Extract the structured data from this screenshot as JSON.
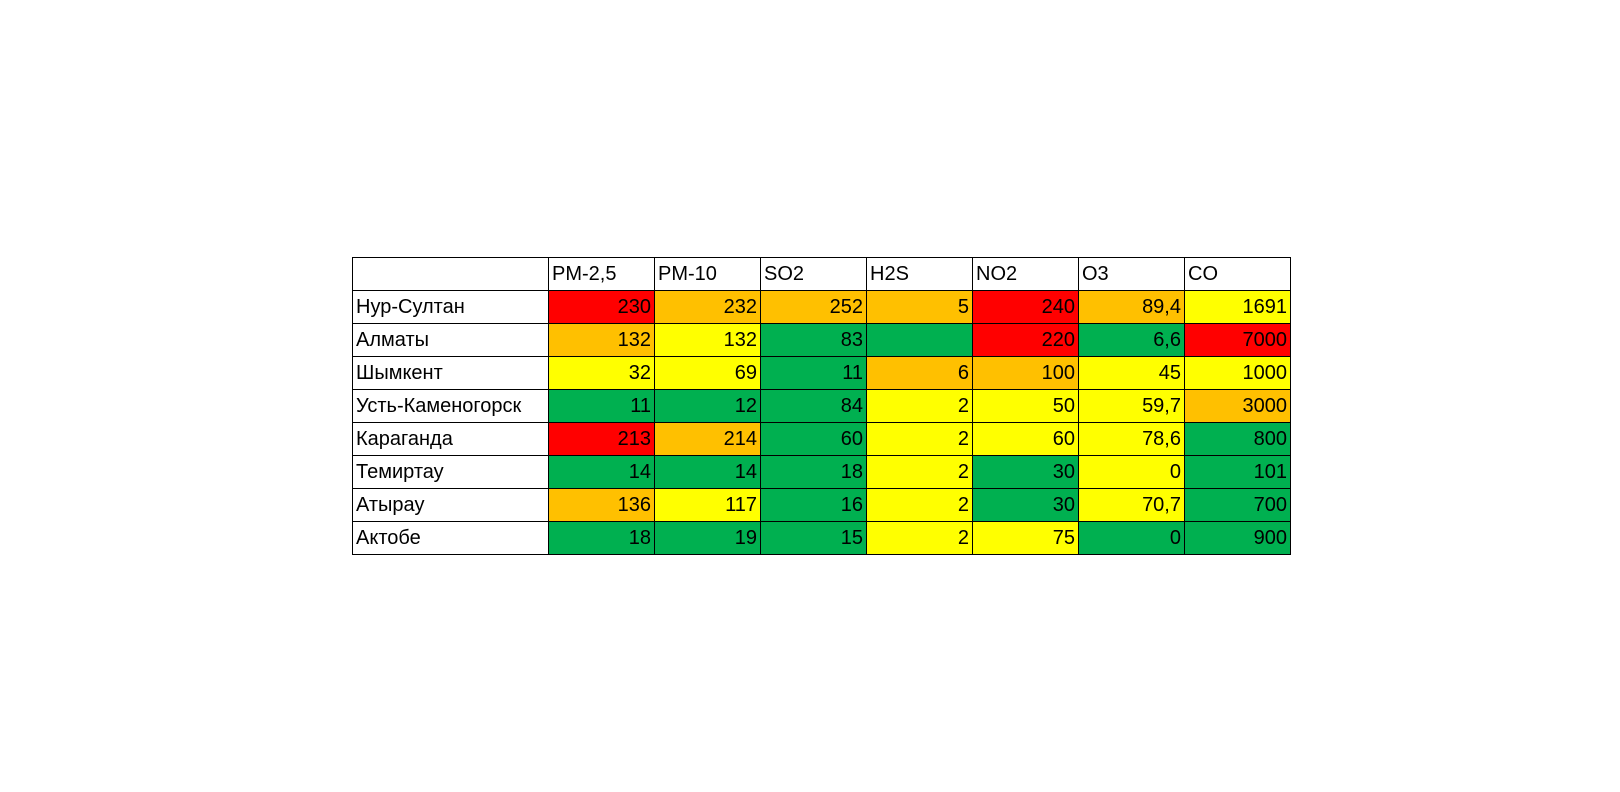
{
  "colors": {
    "red": "#FF0000",
    "orange": "#FFC000",
    "yellow": "#FFFF00",
    "green": "#00B050",
    "white": "#FFFFFF"
  },
  "table": {
    "corner": "",
    "columns": [
      "PM-2,5",
      "PM-10",
      "SO2",
      "H2S",
      "NO2",
      "O3",
      "CO"
    ],
    "rows": [
      {
        "city": "Нур-Султан",
        "cells": [
          {
            "value": "230",
            "level": "red"
          },
          {
            "value": "232",
            "level": "orange"
          },
          {
            "value": "252",
            "level": "orange"
          },
          {
            "value": "5",
            "level": "orange"
          },
          {
            "value": "240",
            "level": "red"
          },
          {
            "value": "89,4",
            "level": "orange"
          },
          {
            "value": "1691",
            "level": "yellow"
          }
        ]
      },
      {
        "city": "Алматы",
        "cells": [
          {
            "value": "132",
            "level": "orange"
          },
          {
            "value": "132",
            "level": "yellow"
          },
          {
            "value": "83",
            "level": "green"
          },
          {
            "value": "",
            "level": "green"
          },
          {
            "value": "220",
            "level": "red"
          },
          {
            "value": "6,6",
            "level": "green"
          },
          {
            "value": "7000",
            "level": "red"
          }
        ]
      },
      {
        "city": "Шымкент",
        "cells": [
          {
            "value": "32",
            "level": "yellow"
          },
          {
            "value": "69",
            "level": "yellow"
          },
          {
            "value": "11",
            "level": "green"
          },
          {
            "value": "6",
            "level": "orange"
          },
          {
            "value": "100",
            "level": "orange"
          },
          {
            "value": "45",
            "level": "yellow"
          },
          {
            "value": "1000",
            "level": "yellow"
          }
        ]
      },
      {
        "city": "Усть-Каменогорск",
        "cells": [
          {
            "value": "11",
            "level": "green"
          },
          {
            "value": "12",
            "level": "green"
          },
          {
            "value": "84",
            "level": "green"
          },
          {
            "value": "2",
            "level": "yellow"
          },
          {
            "value": "50",
            "level": "yellow"
          },
          {
            "value": "59,7",
            "level": "yellow"
          },
          {
            "value": "3000",
            "level": "orange"
          }
        ]
      },
      {
        "city": "Караганда",
        "cells": [
          {
            "value": "213",
            "level": "red"
          },
          {
            "value": "214",
            "level": "orange"
          },
          {
            "value": "60",
            "level": "green"
          },
          {
            "value": "2",
            "level": "yellow"
          },
          {
            "value": "60",
            "level": "yellow"
          },
          {
            "value": "78,6",
            "level": "yellow"
          },
          {
            "value": "800",
            "level": "green"
          }
        ]
      },
      {
        "city": "Темиртау",
        "cells": [
          {
            "value": "14",
            "level": "green"
          },
          {
            "value": "14",
            "level": "green"
          },
          {
            "value": "18",
            "level": "green"
          },
          {
            "value": "2",
            "level": "yellow"
          },
          {
            "value": "30",
            "level": "green"
          },
          {
            "value": "0",
            "level": "yellow"
          },
          {
            "value": "101",
            "level": "green"
          }
        ]
      },
      {
        "city": "Атырау",
        "cells": [
          {
            "value": "136",
            "level": "orange"
          },
          {
            "value": "117",
            "level": "yellow"
          },
          {
            "value": "16",
            "level": "green"
          },
          {
            "value": "2",
            "level": "yellow"
          },
          {
            "value": "30",
            "level": "green"
          },
          {
            "value": "70,7",
            "level": "yellow"
          },
          {
            "value": "700",
            "level": "green"
          }
        ]
      },
      {
        "city": "Актобе",
        "cells": [
          {
            "value": "18",
            "level": "green"
          },
          {
            "value": "19",
            "level": "green"
          },
          {
            "value": "15",
            "level": "green"
          },
          {
            "value": "2",
            "level": "yellow"
          },
          {
            "value": "75",
            "level": "yellow"
          },
          {
            "value": "0",
            "level": "green"
          },
          {
            "value": "900",
            "level": "green"
          }
        ]
      }
    ]
  }
}
